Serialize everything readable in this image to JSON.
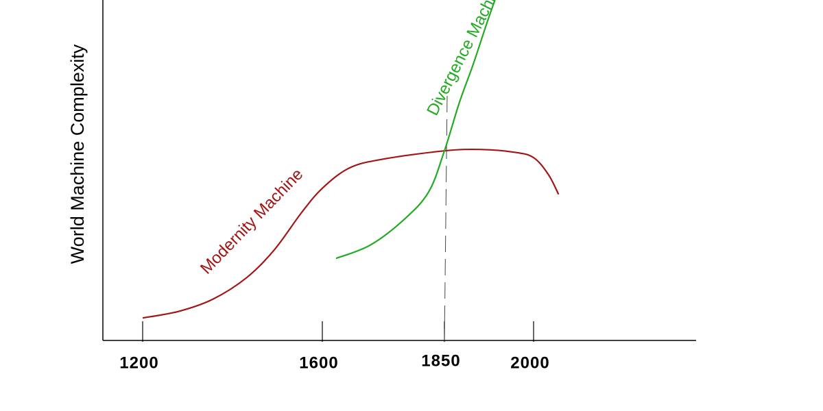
{
  "chart_data": {
    "type": "line",
    "ylabel": "World Machine Complexity",
    "xlim": [
      1111,
      2273
    ],
    "xticks": [
      1200,
      1600,
      1850,
      2000
    ],
    "ylim": [
      0,
      100
    ],
    "series": [
      {
        "name": "Modernity Machine",
        "color": "#a31515",
        "x": [
          1200,
          1279,
          1356,
          1432,
          1493,
          1554,
          1600,
          1656,
          1726,
          1850,
          1910,
          1967,
          2000,
          2025,
          2042
        ],
        "values": [
          6.6,
          8.5,
          12.1,
          18.5,
          26.6,
          37.6,
          44.7,
          50.7,
          53.3,
          55.7,
          56.1,
          55.3,
          53.7,
          48.7,
          42.9
        ]
      },
      {
        "name": "Divergence Machine",
        "color": "#22aa22",
        "x": [
          1628,
          1698,
          1768,
          1818,
          1850,
          1875,
          1898,
          1921,
          1935
        ],
        "values": [
          24.1,
          28.0,
          35.6,
          43.7,
          55.7,
          69.8,
          80.9,
          93,
          100
        ]
      }
    ]
  }
}
